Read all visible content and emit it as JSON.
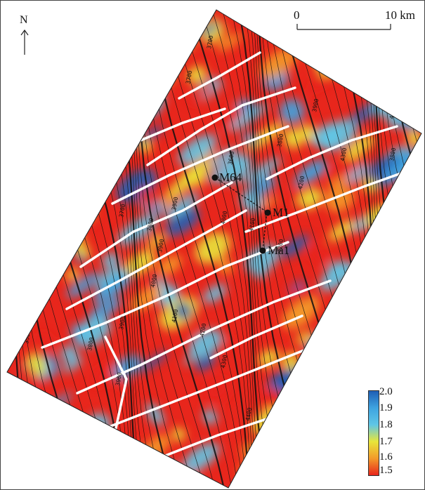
{
  "north": {
    "label": "N"
  },
  "scale": {
    "start": "0",
    "end": "10 km"
  },
  "legend": {
    "ticks": [
      "2.0",
      "1.9",
      "1.8",
      "1.7",
      "1.6",
      "1.5"
    ],
    "colors": [
      "#1f5fb5",
      "#3ea3e0",
      "#5fc6e6",
      "#e8e63a",
      "#f39a2a",
      "#e8261c"
    ]
  },
  "wells": [
    {
      "label": "M64"
    },
    {
      "label": "M1"
    },
    {
      "label": "Ma1"
    }
  ],
  "contours": {
    "labels": [
      "3700",
      "3600",
      "3600",
      "3700",
      "3800",
      "3900",
      "4000",
      "4100",
      "4200",
      "4300",
      "3800",
      "3900",
      "4000",
      "4100",
      "4200",
      "3900",
      "3500",
      "3600",
      "3700",
      "3800",
      "3900",
      "4000",
      "4100",
      "4200",
      "4300",
      "4400",
      "3800",
      "3900"
    ]
  }
}
